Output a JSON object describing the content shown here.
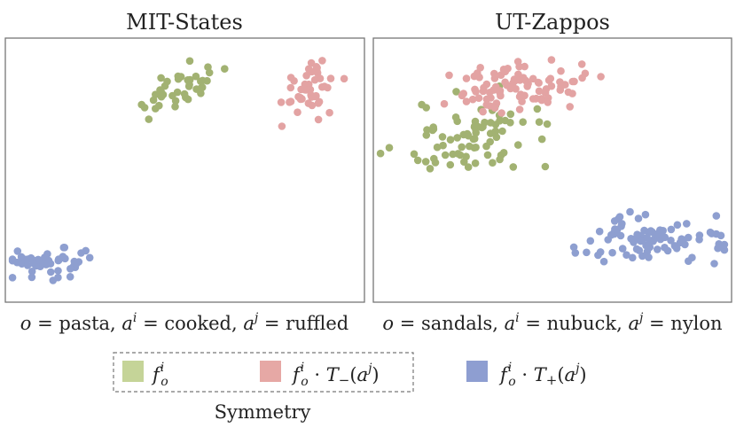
{
  "colors": {
    "green": "#a2b272",
    "red": "#e3a3a3",
    "blue": "#8e9fd0",
    "legend_green": "#c5d498",
    "legend_red": "#e6a8a5",
    "legend_blue": "#8e9ed1",
    "frame": "#777777"
  },
  "legend": {
    "items": [
      {
        "label": "f_o^i",
        "color_key": "green"
      },
      {
        "label": "f_o^i · T_−(a^j)",
        "color_key": "red"
      },
      {
        "label": "f_o^i · T_+(a^j)",
        "color_key": "blue"
      }
    ],
    "group_label": "Symmetry"
  },
  "chart_data": [
    {
      "type": "scatter",
      "title": "MIT-States",
      "caption": "o = pasta, a^i = cooked, a^j = ruffled",
      "caption_parts": {
        "o": "o",
        "o_val": " = pasta, ",
        "ai": "a",
        "ai_sup": "i",
        "ai_val": " = cooked, ",
        "aj": "a",
        "aj_sup": "j",
        "aj_val": " = ruffled"
      },
      "xlim": [
        0,
        100
      ],
      "ylim": [
        0,
        100
      ],
      "axes_visible": false,
      "series": [
        {
          "color_key": "green",
          "cluster": {
            "cx": 48,
            "cy": 80,
            "sx": 7,
            "sy": 4,
            "n": 40,
            "tilt": 0.45
          }
        },
        {
          "color_key": "red",
          "cluster": {
            "cx": 85,
            "cy": 82,
            "sx": 4,
            "sy": 5,
            "n": 45,
            "tilt": 0.2
          }
        },
        {
          "color_key": "blue",
          "cluster": {
            "cx": 13,
            "cy": 15,
            "sx": 6,
            "sy": 2.8,
            "n": 50,
            "tilt": 0
          }
        }
      ]
    },
    {
      "type": "scatter",
      "title": "UT-Zappos",
      "caption": "o = sandals, a^i = nubuck, a^j = nylon",
      "caption_parts": {
        "o": "o",
        "o_val": " = sandals, ",
        "ai": "a",
        "ai_sup": "i",
        "ai_val": " = nubuck, ",
        "aj": "a",
        "aj_sup": "j",
        "aj_val": " = nylon"
      },
      "xlim": [
        0,
        100
      ],
      "ylim": [
        0,
        100
      ],
      "axes_visible": false,
      "series": [
        {
          "color_key": "green",
          "cluster": {
            "cx": 28,
            "cy": 62,
            "sx": 11,
            "sy": 7,
            "n": 80,
            "tilt": 0.15
          }
        },
        {
          "color_key": "red",
          "cluster": {
            "cx": 42,
            "cy": 81,
            "sx": 9,
            "sy": 5,
            "n": 90,
            "tilt": 0.05
          }
        },
        {
          "color_key": "blue",
          "cluster": {
            "cx": 79,
            "cy": 24,
            "sx": 10,
            "sy": 4.5,
            "n": 90,
            "tilt": 0
          }
        }
      ]
    }
  ]
}
